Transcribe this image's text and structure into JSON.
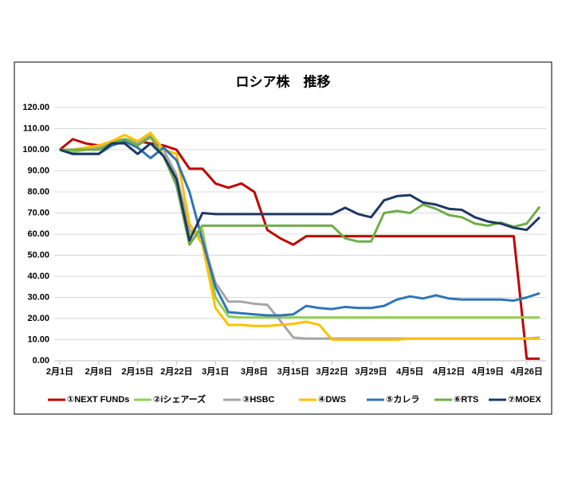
{
  "chart_data": {
    "type": "line",
    "title": "ロシア株　推移",
    "categories": [
      "2月1日",
      null,
      null,
      "2月8日",
      null,
      null,
      "2月15日",
      null,
      null,
      "2月22日",
      null,
      null,
      "3月1日",
      null,
      null,
      "3月8日",
      null,
      null,
      "3月15日",
      null,
      null,
      "3月22日",
      null,
      null,
      "3月29日",
      null,
      null,
      "4月5日",
      null,
      null,
      "4月12日",
      null,
      null,
      "4月19日",
      null,
      null,
      "4月26日",
      null
    ],
    "ylim": [
      0,
      120
    ],
    "yticks": [
      {
        "value": 0,
        "label": "0.00"
      },
      {
        "value": 10,
        "label": "10.00"
      },
      {
        "value": 20,
        "label": "20.00"
      },
      {
        "value": 30,
        "label": "30.00"
      },
      {
        "value": 40,
        "label": "40.00"
      },
      {
        "value": 50,
        "label": "50.00"
      },
      {
        "value": 60,
        "label": "60.00"
      },
      {
        "value": 70,
        "label": "70.00"
      },
      {
        "value": 80,
        "label": "80.00"
      },
      {
        "value": 90,
        "label": "90.00"
      },
      {
        "value": 100,
        "label": "100.00"
      },
      {
        "value": 110,
        "label": "110.00"
      },
      {
        "value": 120,
        "label": "120.00"
      }
    ],
    "grid": true,
    "legend": "bottom",
    "series": [
      {
        "name": "①NEXT FUNDs",
        "color": "#c00000",
        "values": [
          100,
          105,
          103,
          102,
          103,
          105,
          104,
          103,
          102,
          100,
          91,
          91,
          84,
          82,
          84,
          80,
          62,
          58,
          55,
          59,
          59,
          59,
          59,
          59,
          59,
          59,
          59,
          59,
          59,
          59,
          59,
          59,
          59,
          59,
          59,
          59,
          1,
          1
        ]
      },
      {
        "name": "②iシェアーズ",
        "color": "#92d050",
        "values": [
          100,
          99,
          100,
          100,
          103,
          105,
          104,
          107,
          100,
          87,
          60,
          62,
          30,
          21,
          20.5,
          20.5,
          20.5,
          20.5,
          20.5,
          20.5,
          20.5,
          20.5,
          20.5,
          20.5,
          20.5,
          20.5,
          20.5,
          20.5,
          20.5,
          20.5,
          20.5,
          20.5,
          20.5,
          20.5,
          20.5,
          20.5,
          20.5,
          20.5
        ]
      },
      {
        "name": "③HSBC",
        "color": "#a6a6a6",
        "values": [
          100,
          100,
          100,
          101,
          104,
          105,
          103,
          107,
          100,
          88,
          62,
          58,
          37,
          28,
          28,
          27,
          26.5,
          19,
          11,
          10.5,
          10.5,
          10.5,
          10.5,
          10.5,
          10.5,
          10.5,
          10.5,
          10.5,
          10.5,
          10.5,
          10.5,
          10.5,
          10.5,
          10.5,
          10.5,
          10.5,
          10.5,
          11
        ]
      },
      {
        "name": "④DWS",
        "color": "#ffc000",
        "values": [
          100,
          100,
          101,
          102,
          104,
          107,
          104,
          108,
          100,
          98,
          65,
          55,
          25,
          17,
          17,
          16.5,
          16.5,
          17,
          17.5,
          18.5,
          17,
          10,
          10,
          10,
          10,
          10,
          10,
          10.5,
          10.5,
          10.5,
          10.5,
          10.5,
          10.5,
          10.5,
          10.5,
          10.5,
          10.5,
          10.5
        ]
      },
      {
        "name": "⑤カレラ",
        "color": "#2e75b6",
        "values": [
          100,
          98,
          98,
          98,
          102,
          104,
          101,
          96,
          101,
          95,
          80,
          57,
          35,
          23,
          22.5,
          22,
          21.5,
          21.5,
          22,
          26,
          25,
          24.5,
          25.5,
          25,
          25,
          26,
          29,
          30.5,
          29.5,
          31,
          29.5,
          29,
          29,
          29,
          29,
          28.5,
          30,
          32
        ]
      },
      {
        "name": "⑥RTS",
        "color": "#70ad47",
        "values": [
          100,
          100,
          100,
          100,
          103,
          105,
          102,
          106,
          97,
          83,
          55,
          64,
          64,
          64,
          64,
          64,
          64,
          64,
          64,
          64,
          64,
          64,
          58,
          56.5,
          56.5,
          70,
          71,
          70,
          74,
          72,
          69,
          68,
          65,
          64,
          65.5,
          63.5,
          65,
          73
        ]
      },
      {
        "name": "⑦MOEX",
        "color": "#1f3864",
        "values": [
          100,
          98,
          98,
          98,
          103,
          103,
          98,
          103,
          97,
          86,
          57,
          70,
          69.5,
          69.5,
          69.5,
          69.5,
          69.5,
          69.5,
          69.5,
          69.5,
          69.5,
          69.5,
          72.5,
          69.5,
          68,
          76,
          78,
          78.5,
          75,
          74,
          72,
          71.5,
          68,
          66,
          65,
          63,
          62,
          68
        ]
      }
    ]
  }
}
